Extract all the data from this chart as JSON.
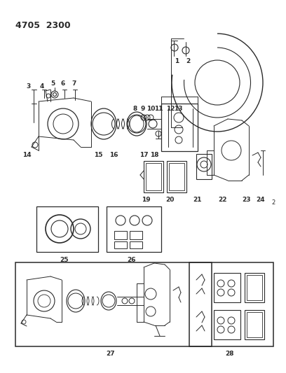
{
  "title": "4705  2300",
  "bg_color": "#ffffff",
  "line_color": "#2a2a2a",
  "figsize": [
    4.08,
    5.33
  ],
  "dpi": 100,
  "page_num": "2"
}
